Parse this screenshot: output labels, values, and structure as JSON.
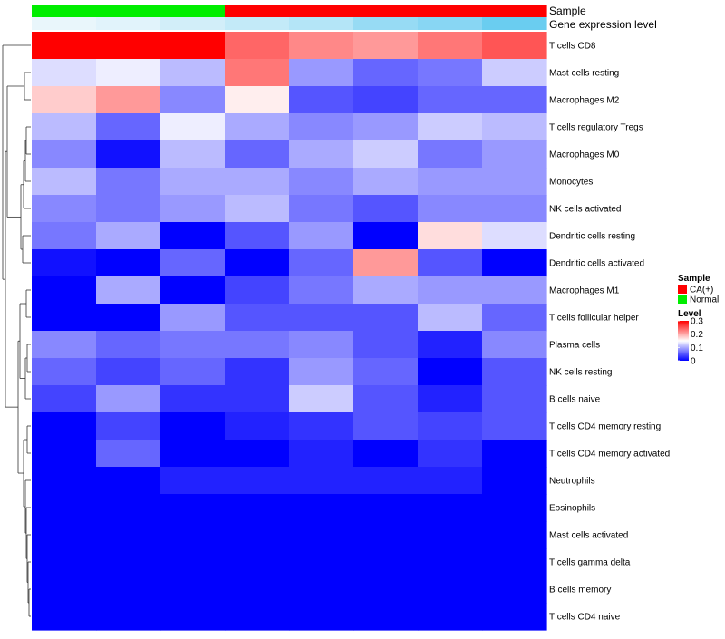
{
  "chart_data": {
    "type": "heatmap",
    "title": "",
    "annotation_tracks": [
      {
        "name": "Sample",
        "values": [
          "Normal",
          "Normal",
          "Normal",
          "CA(+)",
          "CA(+)",
          "CA(+)",
          "CA(+)",
          "CA(+)"
        ]
      },
      {
        "name": "Gene expression level",
        "values": [
          0.05,
          0.1,
          0.2,
          0.3,
          0.4,
          0.6,
          0.7,
          0.9
        ]
      }
    ],
    "rows": [
      "T cells CD8",
      "Mast cells resting",
      "Macrophages M2",
      "T cells regulatory  Tregs",
      "Macrophages M0",
      "Monocytes",
      "NK cells activated",
      "Dendritic cells resting",
      "Dendritic cells activated",
      "Macrophages M1",
      "T cells follicular helper",
      "Plasma cells",
      "NK cells resting",
      "B cells naive",
      "T cells CD4 memory resting",
      "T cells CD4 memory activated",
      "Neutrophils",
      "Eosinophils",
      "Mast cells activated",
      "T cells gamma delta",
      "B cells memory",
      "T cells CD4 naive"
    ],
    "values": [
      [
        0.3,
        0.3,
        0.3,
        0.24,
        0.22,
        0.21,
        0.23,
        0.25
      ],
      [
        0.13,
        0.14,
        0.11,
        0.23,
        0.09,
        0.06,
        0.07,
        0.12
      ],
      [
        0.18,
        0.21,
        0.08,
        0.16,
        0.05,
        0.04,
        0.06,
        0.06
      ],
      [
        0.11,
        0.06,
        0.14,
        0.1,
        0.08,
        0.09,
        0.12,
        0.11
      ],
      [
        0.08,
        0.01,
        0.11,
        0.06,
        0.1,
        0.12,
        0.07,
        0.09
      ],
      [
        0.11,
        0.07,
        0.1,
        0.1,
        0.08,
        0.1,
        0.09,
        0.09
      ],
      [
        0.08,
        0.07,
        0.09,
        0.11,
        0.07,
        0.05,
        0.08,
        0.08
      ],
      [
        0.07,
        0.1,
        0.0,
        0.05,
        0.09,
        0.0,
        0.17,
        0.13
      ],
      [
        0.01,
        0.0,
        0.06,
        0.0,
        0.06,
        0.21,
        0.05,
        0.0
      ],
      [
        0.0,
        0.1,
        0.0,
        0.04,
        0.07,
        0.1,
        0.09,
        0.09
      ],
      [
        0.0,
        0.0,
        0.09,
        0.05,
        0.05,
        0.05,
        0.11,
        0.06
      ],
      [
        0.08,
        0.06,
        0.07,
        0.07,
        0.08,
        0.05,
        0.02,
        0.08
      ],
      [
        0.06,
        0.04,
        0.06,
        0.03,
        0.09,
        0.06,
        0.0,
        0.05
      ],
      [
        0.04,
        0.09,
        0.03,
        0.03,
        0.12,
        0.05,
        0.02,
        0.05
      ],
      [
        0.0,
        0.04,
        0.0,
        0.02,
        0.03,
        0.05,
        0.04,
        0.05
      ],
      [
        0.0,
        0.06,
        0.0,
        0.0,
        0.02,
        0.0,
        0.03,
        0.0
      ],
      [
        0.0,
        0.0,
        0.02,
        0.02,
        0.02,
        0.02,
        0.02,
        0.0
      ],
      [
        0.0,
        0.0,
        0.0,
        0.0,
        0.0,
        0.0,
        0.0,
        0.0
      ],
      [
        0.0,
        0.0,
        0.0,
        0.0,
        0.0,
        0.0,
        0.0,
        0.0
      ],
      [
        0.0,
        0.0,
        0.0,
        0.0,
        0.0,
        0.0,
        0.0,
        0.0
      ],
      [
        0.0,
        0.0,
        0.0,
        0.0,
        0.0,
        0.0,
        0.0,
        0.0
      ],
      [
        0.0,
        0.0,
        0.0,
        0.0,
        0.0,
        0.0,
        0.0,
        0.0
      ]
    ],
    "color_scale": {
      "min": 0,
      "mid": 0.15,
      "max": 0.3,
      "low": "#0000ff",
      "mid_color": "#ffffff",
      "high": "#ff0000"
    },
    "legends": {
      "sample": {
        "title": "Sample",
        "items": [
          {
            "label": "CA(+)",
            "color": "#ff0000"
          },
          {
            "label": "Normal",
            "color": "#00ee00"
          }
        ]
      },
      "level": {
        "title": "Level",
        "ticks": [
          "0.3",
          "0.2",
          "0.1",
          "0"
        ],
        "tick_values": [
          0.3,
          0.2,
          0.1,
          0
        ]
      }
    },
    "annotation_colors": {
      "sample": {
        "Normal": "#00ee00",
        "CA(+)": "#ff0000"
      },
      "expression_low": "#f0f8fc",
      "expression_high": "#5bc8ef"
    },
    "row_dendrogram": true,
    "legend_position": "right"
  }
}
